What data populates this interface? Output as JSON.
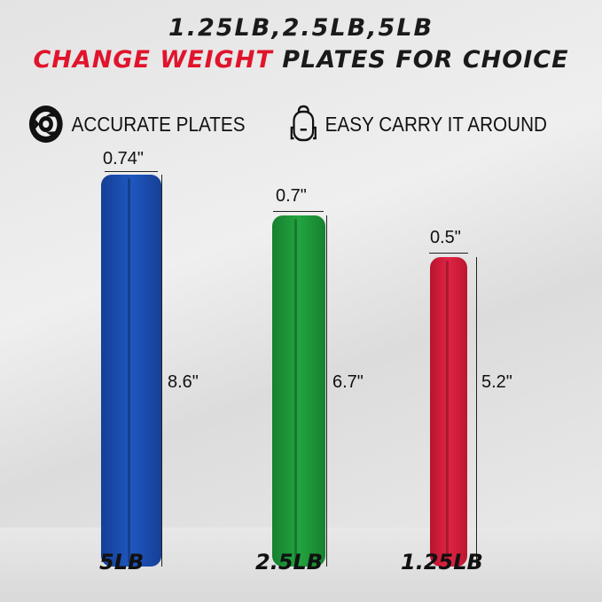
{
  "title_line1": "1.25LB,2.5LB,5LB",
  "title_line2_red": "CHANGE WEIGHT",
  "title_line2_rest": " PLATES FOR CHOICE",
  "features": [
    {
      "icon": "weight-plate-icon",
      "label": "ACCURATE PLATES"
    },
    {
      "icon": "backpack-icon",
      "label": "EASY CARRY IT AROUND"
    }
  ],
  "plates": [
    {
      "weight": "5LB",
      "thickness": "0.74\"",
      "diameter": "8.6\"",
      "color": "#1c4fb0"
    },
    {
      "weight": "2.5LB",
      "thickness": "0.7\"",
      "diameter": "6.7\"",
      "color": "#1f9a3c"
    },
    {
      "weight": "1.25LB",
      "thickness": "0.5\"",
      "diameter": "5.2\"",
      "color": "#d91c3a"
    }
  ]
}
